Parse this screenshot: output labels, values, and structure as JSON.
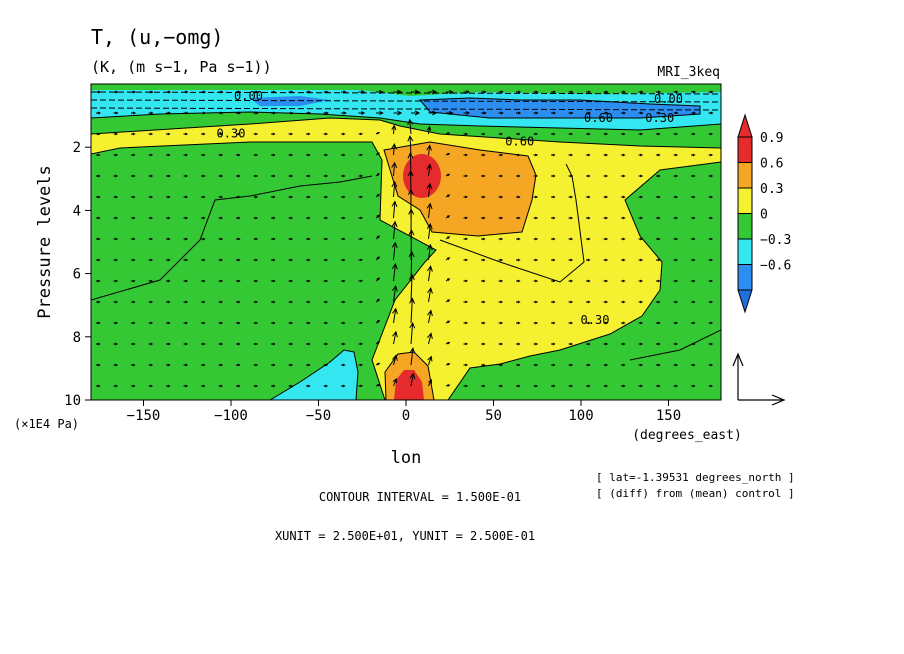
{
  "chart_data": {
    "type": "heatmap",
    "title": "T, (u,−omg)",
    "subtitle": "(K, (m s−1, Pa s−1))",
    "model_label": "MRI_3keq",
    "xlabel": "lon",
    "x_unit_label": "(degrees_east)",
    "ylabel": "Pressure levels",
    "y_unit_label": "(×1E4 Pa)",
    "xlim": [
      -180,
      180
    ],
    "ylim": [
      10,
      0
    ],
    "x_ticks": [
      {
        "value": -150,
        "label": "−150"
      },
      {
        "value": -100,
        "label": "−100"
      },
      {
        "value": -50,
        "label": "−50"
      },
      {
        "value": 0,
        "label": "0"
      },
      {
        "value": 50,
        "label": "50"
      },
      {
        "value": 100,
        "label": "100"
      },
      {
        "value": 150,
        "label": "150"
      }
    ],
    "y_ticks": [
      {
        "value": 2,
        "label": "2"
      },
      {
        "value": 4,
        "label": "4"
      },
      {
        "value": 6,
        "label": "6"
      },
      {
        "value": 8,
        "label": "8"
      },
      {
        "value": 10,
        "label": "10"
      }
    ],
    "colorbar": {
      "levels": [
        {
          "label": "0.9",
          "color": "#e52b2b"
        },
        {
          "label": "0.6",
          "color": "#f5a623"
        },
        {
          "label": "0.3",
          "color": "#f5f030"
        },
        {
          "label": "0",
          "color": "#34c934"
        },
        {
          "label": "−0.3",
          "color": "#33e6f0"
        },
        {
          "label": "−0.6",
          "color": "#2c8ef0"
        }
      ],
      "top_arrow_color": "#e52b2b",
      "bottom_arrow_color": "#1f6fe0"
    },
    "contour_labels": [
      {
        "text": "0.30",
        "lon": -100,
        "p": 1.7
      },
      {
        "text": "0.60",
        "lon": 65,
        "p": 1.95
      },
      {
        "text": "0.30",
        "lon": 108,
        "p": 7.6
      },
      {
        "text": "0.60",
        "lon": 110,
        "p": 1.2
      },
      {
        "text": "0.30",
        "lon": 145,
        "p": 1.2
      },
      {
        "text": "0.00",
        "lon": -90,
        "p": 0.5
      },
      {
        "text": "0.00",
        "lon": 150,
        "p": 0.6
      }
    ],
    "contour_interval": "CONTOUR INTERVAL = 1.500E-01",
    "vector_units": "XUNIT = 2.500E+01, YUNIT = 2.500E-01",
    "info_line1": "[ lat=-1.39531 degrees_north ]",
    "info_line2": "[ (diff) from (mean) control ]"
  }
}
